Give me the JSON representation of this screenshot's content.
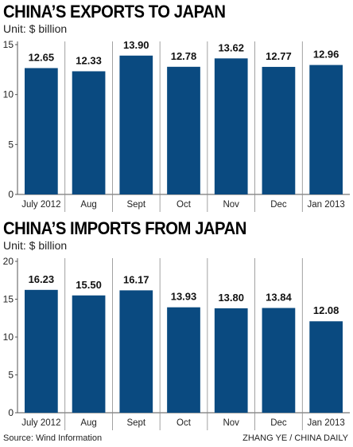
{
  "chart_data": [
    {
      "type": "bar",
      "title": "CHINA’S EXPORTS TO JAPAN",
      "subtitle": "Unit: $ billion",
      "categories": [
        "July 2012",
        "Aug",
        "Sept",
        "Oct",
        "Nov",
        "Dec",
        "Jan 2013"
      ],
      "values": [
        12.65,
        12.33,
        13.9,
        12.78,
        13.62,
        12.77,
        12.96
      ],
      "value_labels": [
        "12.65",
        "12.33",
        "13.90",
        "12.78",
        "13.62",
        "12.77",
        "12.96"
      ],
      "yticks": [
        0,
        5,
        10,
        15
      ],
      "ylim": [
        0,
        15
      ],
      "bar_color": "#0a4a80",
      "grid": false
    },
    {
      "type": "bar",
      "title": "CHINA’S IMPORTS FROM JAPAN",
      "subtitle": "Unit: $ billion",
      "categories": [
        "July 2012",
        "Aug",
        "Sept",
        "Oct",
        "Nov",
        "Dec",
        "Jan 2013"
      ],
      "values": [
        16.23,
        15.5,
        16.17,
        13.93,
        13.8,
        13.84,
        12.08
      ],
      "value_labels": [
        "16.23",
        "15.50",
        "16.17",
        "13.93",
        "13.80",
        "13.84",
        "12.08"
      ],
      "yticks": [
        0,
        5,
        10,
        15,
        20
      ],
      "ylim": [
        0,
        20
      ],
      "bar_color": "#0a4a80",
      "grid": false
    }
  ],
  "footer": {
    "source": "Source: Wind Information",
    "credit": "ZHANG YE / CHINA DAILY"
  }
}
